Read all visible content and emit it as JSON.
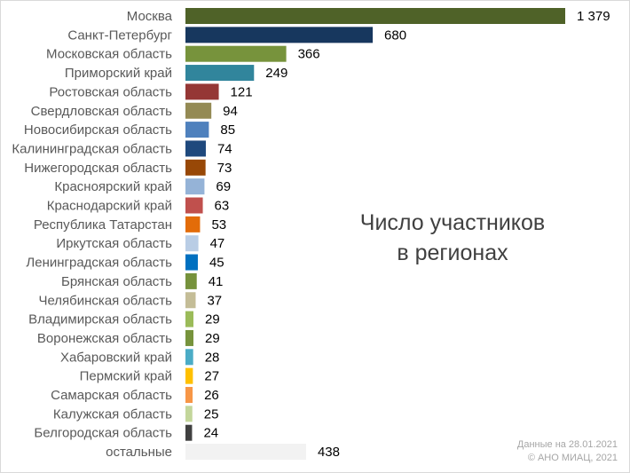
{
  "chart_data": {
    "type": "bar",
    "orientation": "horizontal",
    "title_lines": [
      "Число участников",
      "в регионах"
    ],
    "categories": [
      "Москва",
      "Санкт-Петербург",
      "Московская область",
      "Приморский край",
      "Ростовская область",
      "Свердловская область",
      "Новосибирская область",
      "Калининградская область",
      "Нижегородская область",
      "Красноярский край",
      "Краснодарский край",
      "Республика Татарстан",
      "Иркутская область",
      "Ленинградская область",
      "Брянская область",
      "Челябинская область",
      "Владимирская область",
      "Воронежская область",
      "Хабаровский край",
      "Пермский край",
      "Самарская область",
      "Калужская область",
      "Белгородская область",
      "остальные"
    ],
    "values": [
      1379,
      680,
      366,
      249,
      121,
      94,
      85,
      74,
      73,
      69,
      63,
      53,
      47,
      45,
      41,
      37,
      29,
      29,
      28,
      27,
      26,
      25,
      24,
      438
    ],
    "value_labels": [
      "1 379",
      "680",
      "366",
      "249",
      "121",
      "94",
      "85",
      "74",
      "73",
      "69",
      "63",
      "53",
      "47",
      "45",
      "41",
      "37",
      "29",
      "29",
      "28",
      "27",
      "26",
      "25",
      "24",
      "438"
    ],
    "colors": [
      "#4f6228",
      "#17375e",
      "#77933c",
      "#31859c",
      "#953735",
      "#948a54",
      "#4f81bd",
      "#1f497d",
      "#984807",
      "#95b3d7",
      "#c0504d",
      "#e36c09",
      "#b9cde5",
      "#0070c0",
      "#76923c",
      "#c4bd97",
      "#9bbb59",
      "#77933c",
      "#4bacc6",
      "#ffc000",
      "#f79646",
      "#c3d69b",
      "#404040",
      "#f2f2f2"
    ],
    "xlim": [
      0,
      1379
    ],
    "grid": false,
    "legend": "none"
  },
  "footnote": {
    "line1": "Данные на 28.01.2021",
    "line2": "© АНО МИАЦ, 2021"
  }
}
